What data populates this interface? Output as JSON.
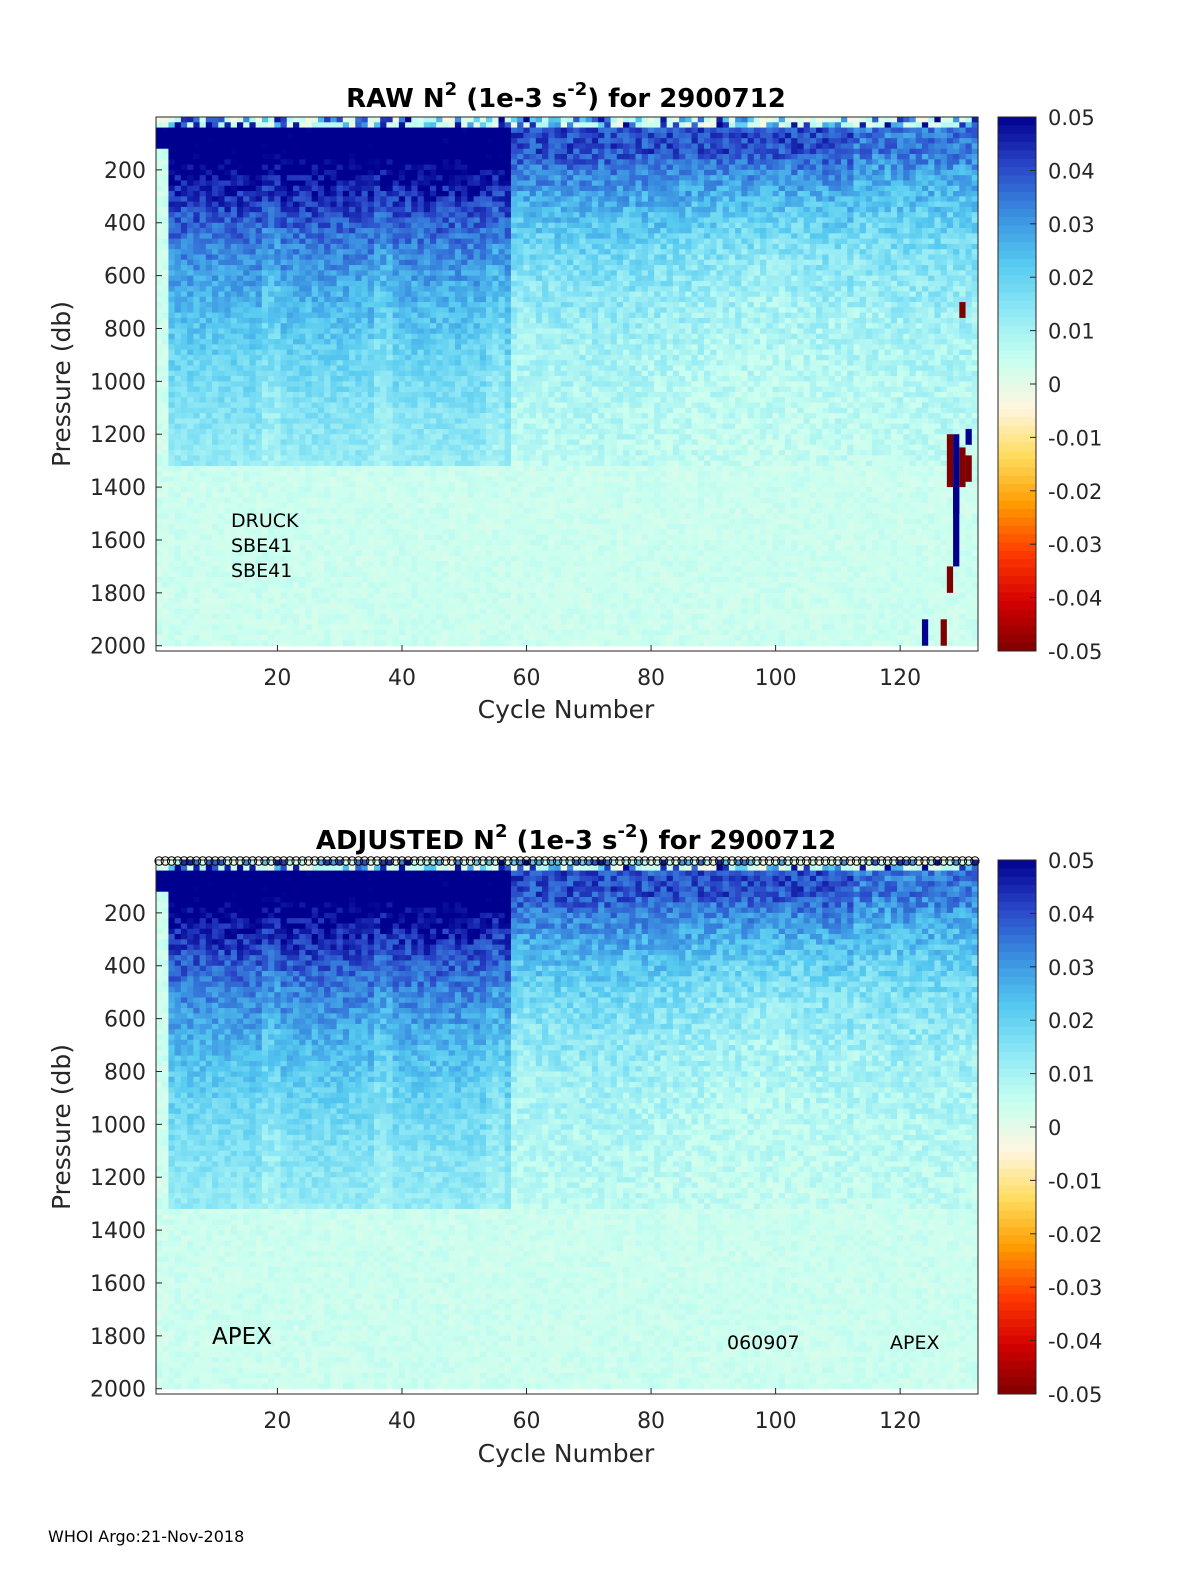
{
  "footer": "WHOI Argo:21-Nov-2018",
  "colorbar_colors": [
    "#7f0000",
    "#d30000",
    "#ff3a00",
    "#ff9a00",
    "#ffdc5c",
    "#fff6e0",
    "#c8fff0",
    "#8fe8f5",
    "#55c9f0",
    "#3a8ee0",
    "#2a46c8",
    "#00008f"
  ],
  "chart_data": [
    {
      "type": "heatmap",
      "title_main": "RAW N",
      "title_sup": "2",
      "title_mid": " (1e-3 s",
      "title_sup2": "-2",
      "title_end": ") for 2900712",
      "xlabel": "Cycle Number",
      "ylabel": "Pressure (db)",
      "xlim": [
        1,
        132
      ],
      "ylim": [
        0,
        2020
      ],
      "y_reversed": true,
      "xticks": [
        "20",
        "40",
        "60",
        "80",
        "100",
        "120"
      ],
      "yticks": [
        "200",
        "400",
        "600",
        "800",
        "1000",
        "1200",
        "1400",
        "1600",
        "1800",
        "2000"
      ],
      "colorbar_ticks": [
        "0.05",
        "0.04",
        "0.03",
        "0.02",
        "0.01",
        "0",
        "-0.01",
        "-0.02",
        "-0.03",
        "-0.04",
        "-0.05"
      ],
      "clim": [
        -0.05,
        0.05
      ],
      "annotations": [
        "DRUCK",
        "SBE41",
        "SBE41"
      ],
      "anomalies": [
        {
          "cycle": 130,
          "p_from": 700,
          "p_to": 760,
          "value": -0.05
        },
        {
          "cycle": 131,
          "p_from": 1180,
          "p_to": 1240,
          "value": 0.05
        },
        {
          "cycle": 131,
          "p_from": 1280,
          "p_to": 1380,
          "value": -0.05
        },
        {
          "cycle": 130,
          "p_from": 1250,
          "p_to": 1400,
          "value": -0.05
        },
        {
          "cycle": 129,
          "p_from": 1200,
          "p_to": 1500,
          "value": 0.05
        },
        {
          "cycle": 128,
          "p_from": 1200,
          "p_to": 1400,
          "value": -0.05
        },
        {
          "cycle": 129,
          "p_from": 1400,
          "p_to": 1700,
          "value": 0.05
        },
        {
          "cycle": 128,
          "p_from": 1700,
          "p_to": 1800,
          "value": -0.05
        },
        {
          "cycle": 124,
          "p_from": 1900,
          "p_to": 2000,
          "value": 0.05
        },
        {
          "cycle": 127,
          "p_from": 1900,
          "p_to": 2000,
          "value": -0.05
        }
      ]
    },
    {
      "type": "heatmap",
      "title_main": "ADJUSTED N",
      "title_sup": "2",
      "title_mid": " (1e-3 s",
      "title_sup2": "-2",
      "title_end": ") for 2900712",
      "xlabel": "Cycle Number",
      "ylabel": "Pressure (db)",
      "xlim": [
        1,
        132
      ],
      "ylim": [
        0,
        2020
      ],
      "y_reversed": true,
      "xticks": [
        "20",
        "40",
        "60",
        "80",
        "100",
        "120"
      ],
      "yticks": [
        "200",
        "400",
        "600",
        "800",
        "1000",
        "1200",
        "1400",
        "1600",
        "1800",
        "2000"
      ],
      "colorbar_ticks": [
        "0.05",
        "0.04",
        "0.03",
        "0.02",
        "0.01",
        "0",
        "-0.01",
        "-0.02",
        "-0.03",
        "-0.04",
        "-0.05"
      ],
      "clim": [
        -0.05,
        0.05
      ],
      "annotations": [
        "APEX",
        "060907",
        "APEX"
      ],
      "qc_markers_cycles": [
        1,
        132
      ]
    }
  ]
}
